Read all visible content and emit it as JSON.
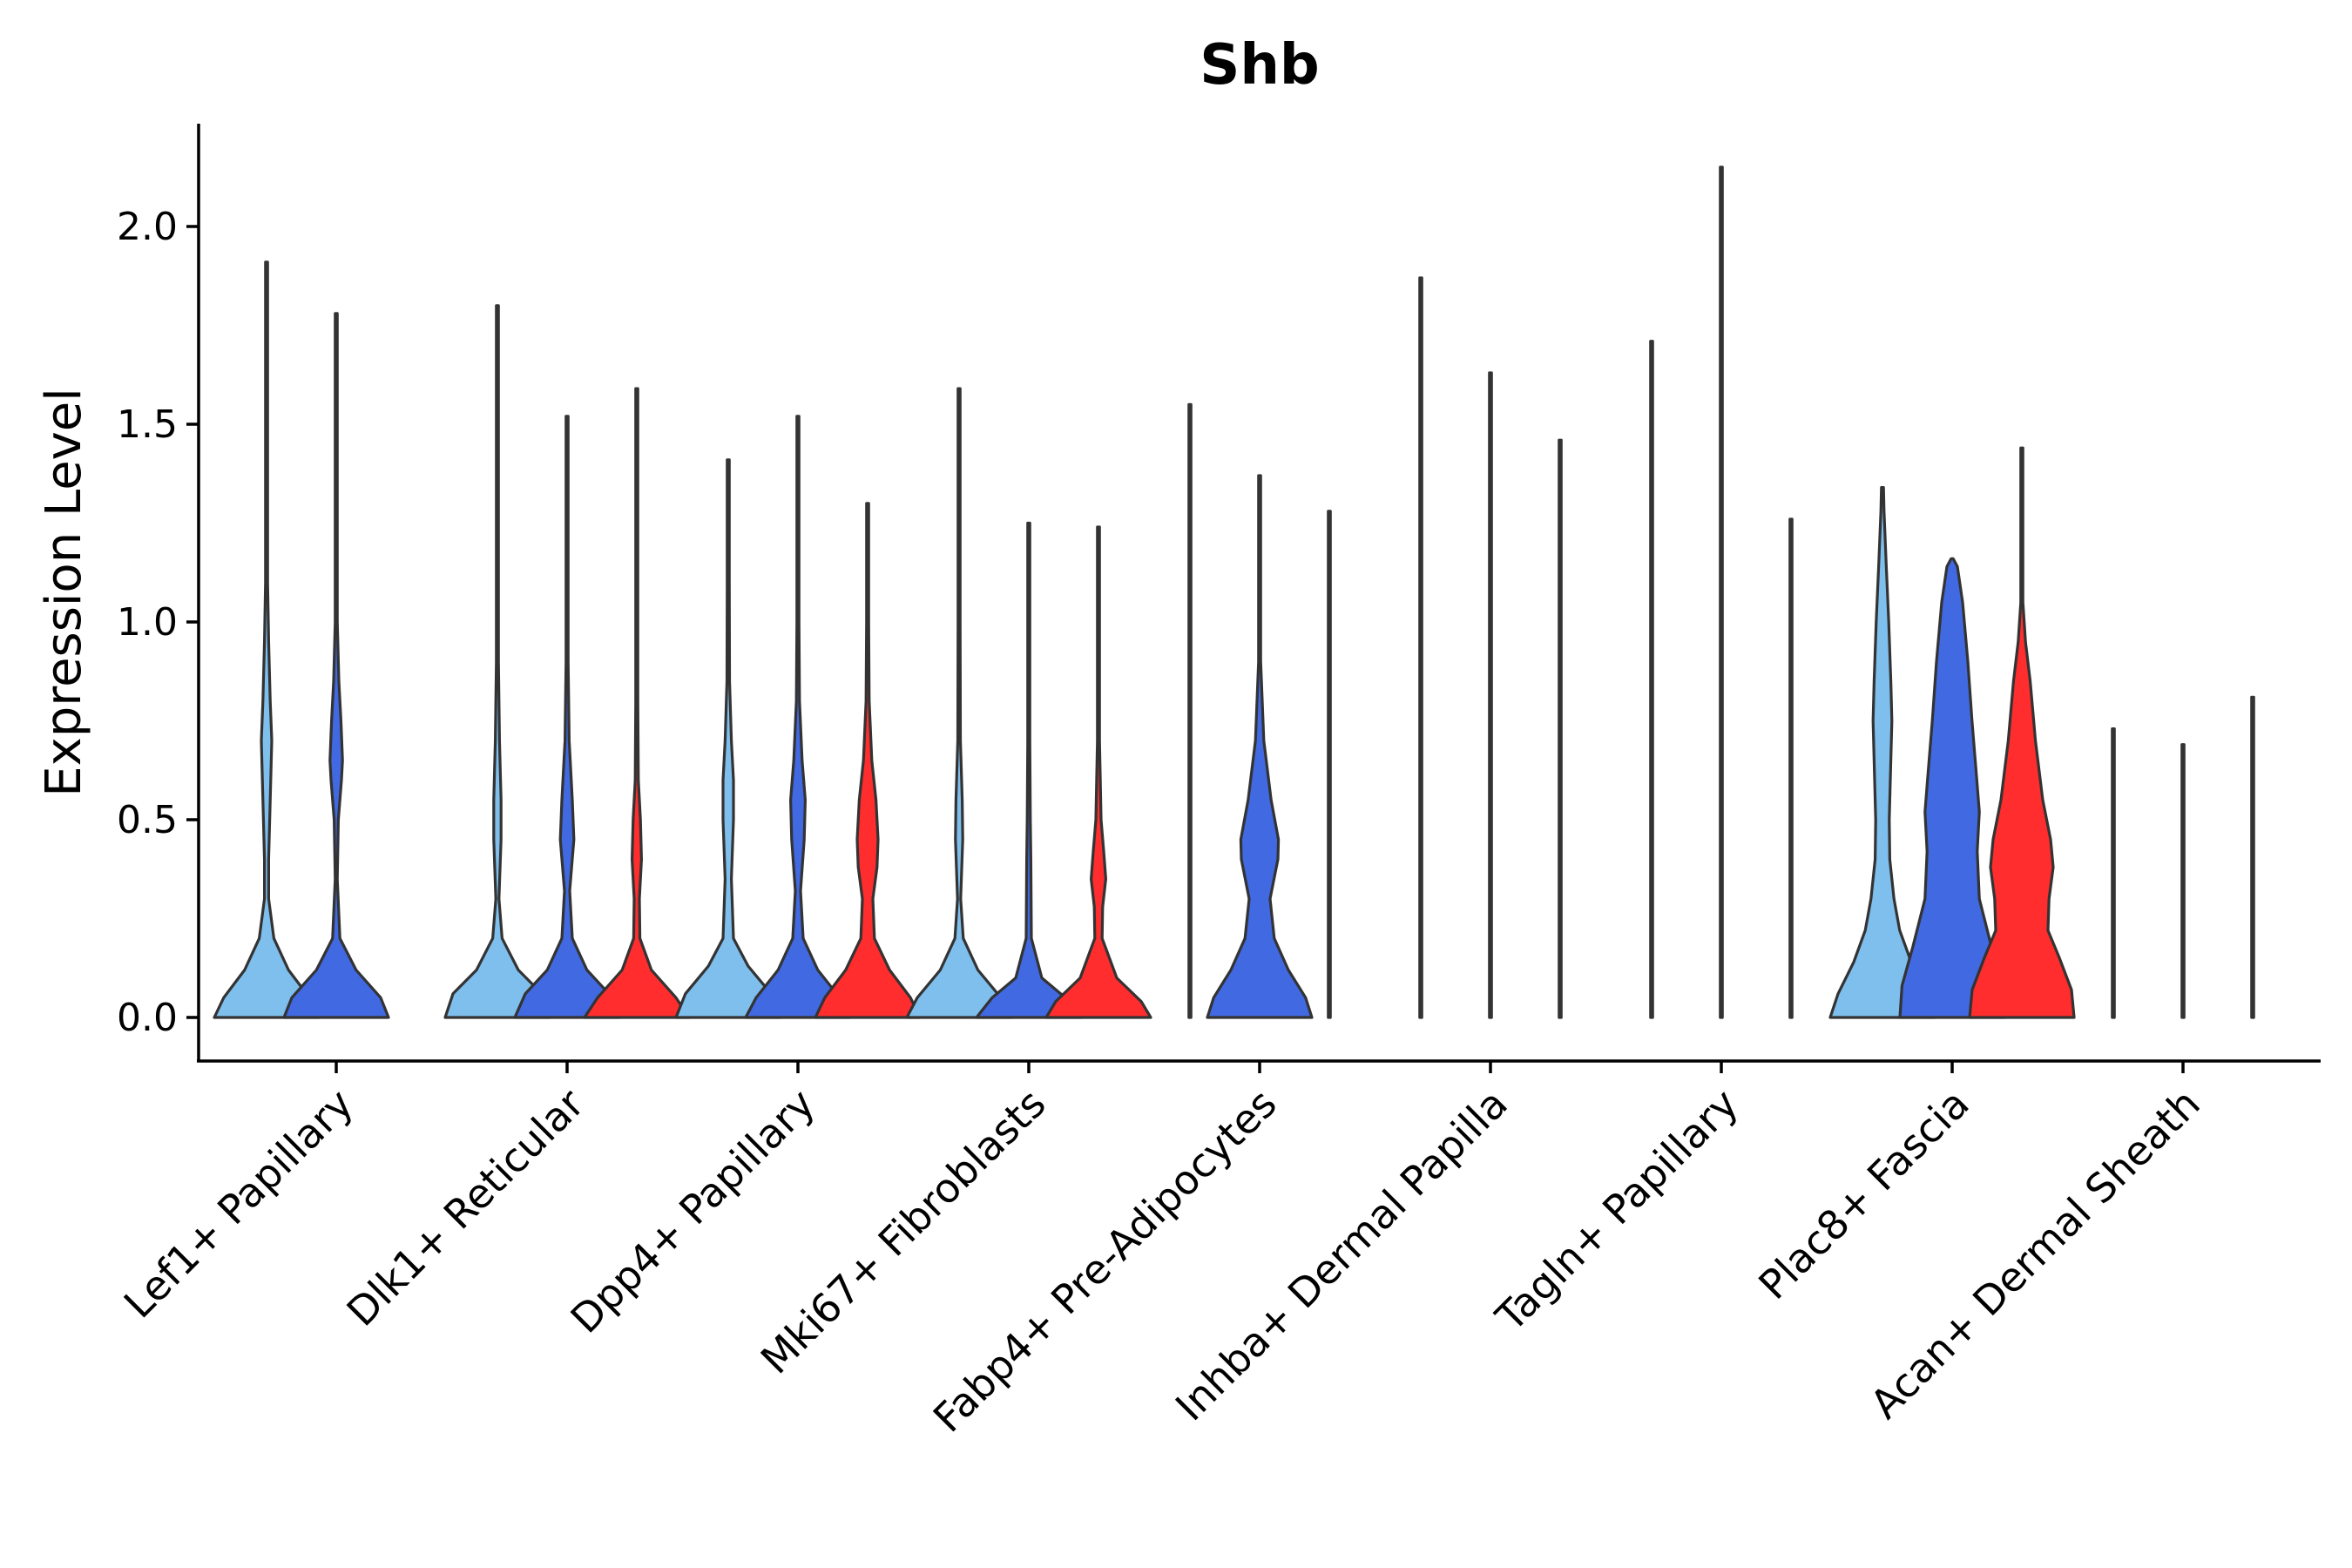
{
  "chart_data": {
    "type": "violin",
    "title": "Shb",
    "xlabel": "",
    "ylabel": "Expression Level",
    "ylim": [
      -0.1,
      2.25
    ],
    "yticks": [
      0.0,
      0.5,
      1.0,
      1.5,
      2.0
    ],
    "ytick_labels": [
      "0.0",
      "0.5",
      "1.0",
      "1.5",
      "2.0"
    ],
    "legend": "none",
    "series_colors": {
      "group1": "#7fbfed",
      "group2": "#4169e1",
      "group3": "#ff2d2d"
    },
    "categories": [
      "Lef1+ Papillary",
      "Dlk1+ Reticular",
      "Dpp4+ Papillary",
      "Mki67+ Fibroblasts",
      "Fabp4+ Pre-Adipocytes",
      "Inhba+ Dermal Papilla",
      "Tagln+ Papillary",
      "Plac8+ Fascia",
      "Acan+ Dermal Sheath"
    ],
    "violins": [
      {
        "category": 0,
        "group": "group1",
        "max": 1.91,
        "shape": [
          [
            0,
            1.0
          ],
          [
            0.05,
            0.82
          ],
          [
            0.12,
            0.42
          ],
          [
            0.2,
            0.14
          ],
          [
            0.3,
            0.04
          ],
          [
            0.4,
            0.04
          ],
          [
            0.55,
            0.07
          ],
          [
            0.7,
            0.1
          ],
          [
            0.8,
            0.07
          ],
          [
            0.95,
            0.04
          ],
          [
            1.1,
            0.02
          ],
          [
            1.3,
            0.008
          ],
          [
            1.5,
            0.004
          ],
          [
            1.91,
            0.002
          ]
        ]
      },
      {
        "category": 0,
        "group": "group2",
        "max": 1.78,
        "shape": [
          [
            0,
            1.0
          ],
          [
            0.05,
            0.85
          ],
          [
            0.12,
            0.38
          ],
          [
            0.2,
            0.07
          ],
          [
            0.35,
            0.02
          ],
          [
            0.5,
            0.04
          ],
          [
            0.6,
            0.1
          ],
          [
            0.65,
            0.12
          ],
          [
            0.75,
            0.09
          ],
          [
            0.85,
            0.05
          ],
          [
            1.0,
            0.02
          ],
          [
            1.2,
            0.006
          ],
          [
            1.78,
            0.002
          ]
        ]
      },
      {
        "category": 1,
        "group": "group1",
        "max": 1.8,
        "shape": [
          [
            0,
            1.0
          ],
          [
            0.06,
            0.85
          ],
          [
            0.12,
            0.4
          ],
          [
            0.2,
            0.09
          ],
          [
            0.3,
            0.03
          ],
          [
            0.45,
            0.07
          ],
          [
            0.55,
            0.07
          ],
          [
            0.7,
            0.04
          ],
          [
            0.9,
            0.02
          ],
          [
            1.2,
            0.006
          ],
          [
            1.8,
            0.002
          ]
        ]
      },
      {
        "category": 1,
        "group": "group2",
        "max": 1.52,
        "shape": [
          [
            0,
            1.0
          ],
          [
            0.06,
            0.8
          ],
          [
            0.12,
            0.38
          ],
          [
            0.2,
            0.1
          ],
          [
            0.32,
            0.05
          ],
          [
            0.45,
            0.13
          ],
          [
            0.55,
            0.1
          ],
          [
            0.7,
            0.04
          ],
          [
            0.9,
            0.015
          ],
          [
            1.2,
            0.005
          ],
          [
            1.52,
            0.002
          ]
        ]
      },
      {
        "category": 1,
        "group": "group3",
        "max": 1.59,
        "shape": [
          [
            0,
            1.0
          ],
          [
            0.05,
            0.75
          ],
          [
            0.12,
            0.28
          ],
          [
            0.2,
            0.06
          ],
          [
            0.3,
            0.05
          ],
          [
            0.4,
            0.09
          ],
          [
            0.5,
            0.07
          ],
          [
            0.6,
            0.03
          ],
          [
            0.8,
            0.01
          ],
          [
            1.1,
            0.004
          ],
          [
            1.59,
            0.002
          ]
        ]
      },
      {
        "category": 2,
        "group": "group1",
        "max": 1.41,
        "shape": [
          [
            0,
            1.0
          ],
          [
            0.06,
            0.82
          ],
          [
            0.13,
            0.38
          ],
          [
            0.2,
            0.1
          ],
          [
            0.35,
            0.06
          ],
          [
            0.5,
            0.1
          ],
          [
            0.6,
            0.1
          ],
          [
            0.7,
            0.06
          ],
          [
            0.85,
            0.025
          ],
          [
            1.1,
            0.006
          ],
          [
            1.41,
            0.002
          ]
        ]
      },
      {
        "category": 2,
        "group": "group2",
        "max": 1.52,
        "shape": [
          [
            0,
            1.0
          ],
          [
            0.05,
            0.8
          ],
          [
            0.12,
            0.38
          ],
          [
            0.2,
            0.1
          ],
          [
            0.32,
            0.05
          ],
          [
            0.45,
            0.12
          ],
          [
            0.55,
            0.14
          ],
          [
            0.65,
            0.08
          ],
          [
            0.8,
            0.03
          ],
          [
            1.0,
            0.01
          ],
          [
            1.52,
            0.002
          ]
        ]
      },
      {
        "category": 2,
        "group": "group3",
        "max": 1.3,
        "shape": [
          [
            0,
            1.0
          ],
          [
            0.05,
            0.82
          ],
          [
            0.12,
            0.42
          ],
          [
            0.2,
            0.13
          ],
          [
            0.3,
            0.1
          ],
          [
            0.38,
            0.18
          ],
          [
            0.45,
            0.2
          ],
          [
            0.55,
            0.16
          ],
          [
            0.65,
            0.08
          ],
          [
            0.8,
            0.03
          ],
          [
            1.0,
            0.01
          ],
          [
            1.3,
            0.002
          ]
        ]
      },
      {
        "category": 3,
        "group": "group1",
        "max": 1.59,
        "shape": [
          [
            0,
            1.0
          ],
          [
            0.05,
            0.8
          ],
          [
            0.12,
            0.36
          ],
          [
            0.2,
            0.08
          ],
          [
            0.3,
            0.03
          ],
          [
            0.45,
            0.07
          ],
          [
            0.55,
            0.06
          ],
          [
            0.7,
            0.025
          ],
          [
            1.0,
            0.008
          ],
          [
            1.59,
            0.002
          ]
        ]
      },
      {
        "category": 3,
        "group": "group2",
        "max": 1.25,
        "shape": [
          [
            0,
            1.0
          ],
          [
            0.05,
            0.7
          ],
          [
            0.1,
            0.25
          ],
          [
            0.2,
            0.05
          ],
          [
            0.4,
            0.04
          ],
          [
            0.5,
            0.03
          ],
          [
            0.7,
            0.02
          ],
          [
            1.0,
            0.005
          ],
          [
            1.25,
            0.002
          ]
        ]
      },
      {
        "category": 3,
        "group": "group3",
        "max": 1.24,
        "shape": [
          [
            0,
            1.0
          ],
          [
            0.04,
            0.82
          ],
          [
            0.1,
            0.35
          ],
          [
            0.2,
            0.07
          ],
          [
            0.28,
            0.08
          ],
          [
            0.35,
            0.14
          ],
          [
            0.42,
            0.1
          ],
          [
            0.5,
            0.05
          ],
          [
            0.7,
            0.02
          ],
          [
            1.0,
            0.006
          ],
          [
            1.24,
            0.002
          ]
        ]
      },
      {
        "category": 4,
        "group": "group1",
        "max": 1.55,
        "shape": [
          [
            0,
            0.01
          ],
          [
            0.02,
            0.004
          ],
          [
            1.55,
            0.002
          ]
        ]
      },
      {
        "category": 4,
        "group": "group2",
        "max": 1.37,
        "shape": [
          [
            0,
            1.0
          ],
          [
            0.05,
            0.88
          ],
          [
            0.12,
            0.55
          ],
          [
            0.2,
            0.28
          ],
          [
            0.3,
            0.2
          ],
          [
            0.4,
            0.35
          ],
          [
            0.45,
            0.36
          ],
          [
            0.55,
            0.22
          ],
          [
            0.7,
            0.08
          ],
          [
            0.9,
            0.02
          ],
          [
            1.37,
            0.002
          ]
        ]
      },
      {
        "category": 4,
        "group": "group3",
        "max": 1.28,
        "shape": [
          [
            0,
            0.01
          ],
          [
            0.02,
            0.004
          ],
          [
            1.28,
            0.002
          ]
        ]
      },
      {
        "category": 5,
        "group": "group1",
        "max": 1.87,
        "shape": [
          [
            0,
            0.01
          ],
          [
            0.02,
            0.004
          ],
          [
            1.87,
            0.002
          ]
        ]
      },
      {
        "category": 5,
        "group": "group2",
        "max": 1.63,
        "shape": [
          [
            0,
            0.01
          ],
          [
            0.02,
            0.004
          ],
          [
            1.63,
            0.002
          ]
        ]
      },
      {
        "category": 5,
        "group": "group3",
        "max": 1.46,
        "shape": [
          [
            0,
            0.01
          ],
          [
            0.02,
            0.004
          ],
          [
            1.46,
            0.002
          ]
        ]
      },
      {
        "category": 6,
        "group": "group1",
        "max": 1.71,
        "shape": [
          [
            0,
            0.01
          ],
          [
            0.02,
            0.004
          ],
          [
            1.71,
            0.002
          ]
        ]
      },
      {
        "category": 6,
        "group": "group2",
        "max": 2.15,
        "shape": [
          [
            0,
            0.01
          ],
          [
            0.02,
            0.004
          ],
          [
            2.15,
            0.002
          ]
        ]
      },
      {
        "category": 6,
        "group": "group3",
        "max": 1.26,
        "shape": [
          [
            0,
            0.01
          ],
          [
            0.02,
            0.004
          ],
          [
            1.26,
            0.002
          ]
        ]
      },
      {
        "category": 7,
        "group": "group1",
        "max": 1.34,
        "shape": [
          [
            0,
            1.0
          ],
          [
            0.06,
            0.85
          ],
          [
            0.14,
            0.55
          ],
          [
            0.22,
            0.33
          ],
          [
            0.3,
            0.22
          ],
          [
            0.4,
            0.14
          ],
          [
            0.5,
            0.13
          ],
          [
            0.6,
            0.15
          ],
          [
            0.75,
            0.18
          ],
          [
            0.85,
            0.16
          ],
          [
            1.0,
            0.12
          ],
          [
            1.15,
            0.07
          ],
          [
            1.28,
            0.03
          ],
          [
            1.34,
            0.0
          ]
        ]
      },
      {
        "category": 7,
        "group": "group2",
        "max": 1.16,
        "shape": [
          [
            0,
            1.0
          ],
          [
            0.08,
            0.96
          ],
          [
            0.18,
            0.75
          ],
          [
            0.3,
            0.52
          ],
          [
            0.42,
            0.48
          ],
          [
            0.52,
            0.52
          ],
          [
            0.62,
            0.46
          ],
          [
            0.75,
            0.38
          ],
          [
            0.9,
            0.3
          ],
          [
            1.05,
            0.2
          ],
          [
            1.14,
            0.1
          ],
          [
            1.16,
            0.0
          ]
        ]
      },
      {
        "category": 7,
        "group": "group3",
        "max": 1.44,
        "shape": [
          [
            0,
            1.0
          ],
          [
            0.07,
            0.95
          ],
          [
            0.15,
            0.72
          ],
          [
            0.22,
            0.5
          ],
          [
            0.3,
            0.52
          ],
          [
            0.38,
            0.6
          ],
          [
            0.45,
            0.55
          ],
          [
            0.55,
            0.4
          ],
          [
            0.7,
            0.26
          ],
          [
            0.85,
            0.16
          ],
          [
            0.95,
            0.07
          ],
          [
            1.05,
            0.02
          ],
          [
            1.2,
            0.006
          ],
          [
            1.44,
            0.002
          ]
        ]
      },
      {
        "category": 8,
        "group": "group1",
        "max": 0.73,
        "shape": [
          [
            0,
            0.01
          ],
          [
            0.02,
            0.004
          ],
          [
            0.73,
            0.002
          ]
        ]
      },
      {
        "category": 8,
        "group": "group2",
        "max": 0.69,
        "shape": [
          [
            0,
            0.01
          ],
          [
            0.02,
            0.004
          ],
          [
            0.69,
            0.002
          ]
        ]
      },
      {
        "category": 8,
        "group": "group3",
        "max": 0.81,
        "shape": [
          [
            0,
            0.01
          ],
          [
            0.02,
            0.004
          ],
          [
            0.81,
            0.002
          ]
        ]
      }
    ]
  }
}
